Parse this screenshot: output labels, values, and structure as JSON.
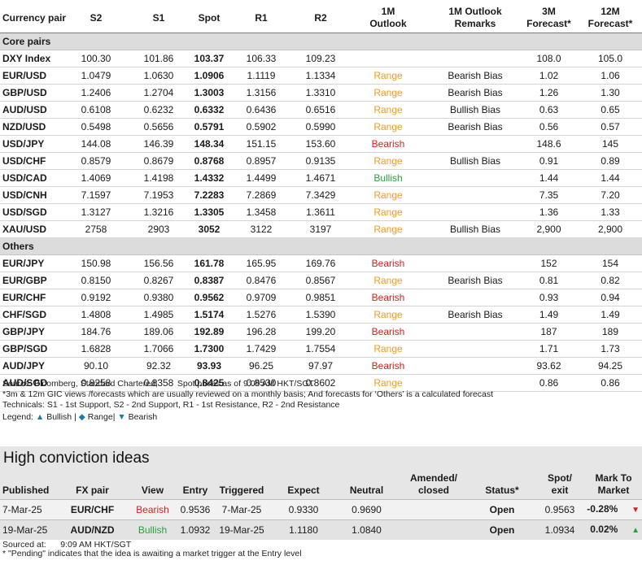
{
  "fx_table": {
    "headers": {
      "pair": "Currency pair",
      "s2": "S2",
      "s1": "S1",
      "spot": "Spot",
      "r1": "R1",
      "r2": "R2",
      "outlook": "1M Outlook",
      "remarks": "1M Outlook Remarks",
      "f3m": "3M Forecast*",
      "f12m": "12M Forecast*"
    },
    "sections": [
      {
        "title": "Core pairs",
        "rows": [
          {
            "pair": "DXY Index",
            "s2": "100.30",
            "s1": "101.86",
            "spot": "103.37",
            "r1": "106.33",
            "r2": "109.23",
            "outlook": "",
            "remarks": "",
            "f3m": "108.0",
            "f12m": "105.0"
          },
          {
            "pair": "EUR/USD",
            "s2": "1.0479",
            "s1": "1.0630",
            "spot": "1.0906",
            "r1": "1.1119",
            "r2": "1.1334",
            "outlook": "Range",
            "remarks": "Bearish Bias",
            "f3m": "1.02",
            "f12m": "1.06"
          },
          {
            "pair": "GBP/USD",
            "s2": "1.2406",
            "s1": "1.2704",
            "spot": "1.3003",
            "r1": "1.3156",
            "r2": "1.3310",
            "outlook": "Range",
            "remarks": "Bearish Bias",
            "f3m": "1.26",
            "f12m": "1.30"
          },
          {
            "pair": "AUD/USD",
            "s2": "0.6108",
            "s1": "0.6232",
            "spot": "0.6332",
            "r1": "0.6436",
            "r2": "0.6516",
            "outlook": "Range",
            "remarks": "Bullish Bias",
            "f3m": "0.63",
            "f12m": "0.65"
          },
          {
            "pair": "NZD/USD",
            "s2": "0.5498",
            "s1": "0.5656",
            "spot": "0.5791",
            "r1": "0.5902",
            "r2": "0.5990",
            "outlook": "Range",
            "remarks": "Bearish Bias",
            "f3m": "0.56",
            "f12m": "0.57"
          },
          {
            "pair": "USD/JPY",
            "s2": "144.08",
            "s1": "146.39",
            "spot": "148.34",
            "r1": "151.15",
            "r2": "153.60",
            "outlook": "Bearish",
            "remarks": "",
            "f3m": "148.6",
            "f12m": "145"
          },
          {
            "pair": "USD/CHF",
            "s2": "0.8579",
            "s1": "0.8679",
            "spot": "0.8768",
            "r1": "0.8957",
            "r2": "0.9135",
            "outlook": "Range",
            "remarks": "Bullish Bias",
            "f3m": "0.91",
            "f12m": "0.89"
          },
          {
            "pair": "USD/CAD",
            "s2": "1.4069",
            "s1": "1.4198",
            "spot": "1.4332",
            "r1": "1.4499",
            "r2": "1.4671",
            "outlook": "Bullish",
            "remarks": "",
            "f3m": "1.44",
            "f12m": "1.44"
          },
          {
            "pair": "USD/CNH",
            "s2": "7.1597",
            "s1": "7.1953",
            "spot": "7.2283",
            "r1": "7.2869",
            "r2": "7.3429",
            "outlook": "Range",
            "remarks": "",
            "f3m": "7.35",
            "f12m": "7.20"
          },
          {
            "pair": "USD/SGD",
            "s2": "1.3127",
            "s1": "1.3216",
            "spot": "1.3305",
            "r1": "1.3458",
            "r2": "1.3611",
            "outlook": "Range",
            "remarks": "",
            "f3m": "1.36",
            "f12m": "1.33"
          },
          {
            "pair": "XAU/USD",
            "s2": "2758",
            "s1": "2903",
            "spot": "3052",
            "r1": "3122",
            "r2": "3197",
            "outlook": "Range",
            "remarks": "Bullish Bias",
            "f3m": "2,900",
            "f12m": "2,900"
          }
        ]
      },
      {
        "title": "Others",
        "rows": [
          {
            "pair": "EUR/JPY",
            "s2": "150.98",
            "s1": "156.56",
            "spot": "161.78",
            "r1": "165.95",
            "r2": "169.76",
            "outlook": "Bearish",
            "remarks": "",
            "f3m": "152",
            "f12m": "154"
          },
          {
            "pair": "EUR/GBP",
            "s2": "0.8150",
            "s1": "0.8267",
            "spot": "0.8387",
            "r1": "0.8476",
            "r2": "0.8567",
            "outlook": "Range",
            "remarks": "Bearish Bias",
            "f3m": "0.81",
            "f12m": "0.82"
          },
          {
            "pair": "EUR/CHF",
            "s2": "0.9192",
            "s1": "0.9380",
            "spot": "0.9562",
            "r1": "0.9709",
            "r2": "0.9851",
            "outlook": "Bearish",
            "remarks": "",
            "f3m": "0.93",
            "f12m": "0.94"
          },
          {
            "pair": "CHF/SGD",
            "s2": "1.4808",
            "s1": "1.4985",
            "spot": "1.5174",
            "r1": "1.5276",
            "r2": "1.5390",
            "outlook": "Range",
            "remarks": "Bearish Bias",
            "f3m": "1.49",
            "f12m": "1.49"
          },
          {
            "pair": "GBP/JPY",
            "s2": "184.76",
            "s1": "189.06",
            "spot": "192.89",
            "r1": "196.28",
            "r2": "199.20",
            "outlook": "Bearish",
            "remarks": "",
            "f3m": "187",
            "f12m": "189"
          },
          {
            "pair": "GBP/SGD",
            "s2": "1.6828",
            "s1": "1.7066",
            "spot": "1.7300",
            "r1": "1.7429",
            "r2": "1.7554",
            "outlook": "Range",
            "remarks": "",
            "f3m": "1.71",
            "f12m": "1.73"
          },
          {
            "pair": "AUD/JPY",
            "s2": "90.10",
            "s1": "92.32",
            "spot": "93.93",
            "r1": "96.25",
            "r2": "97.97",
            "outlook": "Bearish",
            "remarks": "",
            "f3m": "93.62",
            "f12m": "94.25"
          },
          {
            "pair": "AUD/SGD",
            "s2": "0.8258",
            "s1": "0.8358",
            "spot": "0.8425",
            "r1": "0.8530",
            "r2": "0.8602",
            "outlook": "Range",
            "remarks": "",
            "f3m": "0.86",
            "f12m": "0.86"
          }
        ]
      }
    ]
  },
  "notes": {
    "source": "Source: Bloomberg, Standard Chartered;",
    "spot_time": "Spot prices as of  9:09 AM HKT/SGT",
    "forecast_note": "*3m & 12m GIC views /forecasts which are usually reviewed on a monthly basis; And forecasts for ‘Others’ is a calculated forecast",
    "technicals": "Technicals: S1 - 1st Support, S2 - 2nd Support, R1 - 1st Resistance, R2 - 2nd Resistance",
    "legend_label": "Legend:",
    "legend_bullish": "Bullish",
    "legend_range": "Range",
    "legend_bearish": "Bearish",
    "legend_sep": "|"
  },
  "conviction": {
    "title": "High conviction ideas",
    "headers": {
      "published": "Published",
      "pair": "FX pair",
      "view": "View",
      "entry": "Entry",
      "triggered": "Triggered",
      "expect": "Expect",
      "neutral": "Neutral",
      "amended": "Amended/ closed",
      "status": "Status*",
      "spot_exit": "Spot/ exit",
      "mtm": "Mark To Market"
    },
    "rows": [
      {
        "published": "7-Mar-25",
        "pair": "EUR/CHF",
        "view": "Bearish",
        "entry": "0.9536",
        "triggered": "7-Mar-25",
        "expect": "0.9330",
        "neutral": "0.9690",
        "amended": "",
        "status": "Open",
        "spot_exit": "0.9563",
        "mtm": "-0.28%",
        "trend": "down"
      },
      {
        "published": "19-Mar-25",
        "pair": "AUD/NZD",
        "view": "Bullish",
        "entry": "1.0932",
        "triggered": "19-Mar-25",
        "expect": "1.1180",
        "neutral": "1.0840",
        "amended": "",
        "status": "Open",
        "spot_exit": "1.0934",
        "mtm": "0.02%",
        "trend": "up"
      }
    ],
    "sourced_label": "Sourced at:",
    "sourced_time": "9:09 AM HKT/SGT",
    "pending_note": "* \"Pending\" indicates that the idea is awaiting a market trigger at the Entry level"
  },
  "colors": {
    "range": "#f29a1f",
    "bearish": "#d9211b",
    "bullish": "#23a43a",
    "section_bg": "#dcdcdc"
  }
}
